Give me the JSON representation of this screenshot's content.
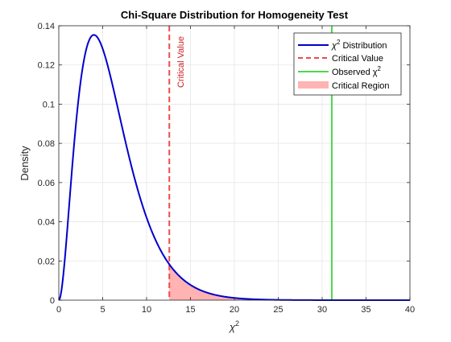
{
  "chart_data": {
    "type": "line",
    "title": "Chi-Square Distribution for Homogeneity Test",
    "xlabel": "χ",
    "xlabel_sup": "2",
    "ylabel": "Density",
    "xlim": [
      0,
      40
    ],
    "ylim": [
      0,
      0.14
    ],
    "x_ticks": [
      0,
      5,
      10,
      15,
      20,
      25,
      30,
      35,
      40
    ],
    "y_ticks": [
      0,
      0.02,
      0.04,
      0.06,
      0.08,
      0.1,
      0.12,
      0.14
    ],
    "grid": true,
    "legend_position": "top-right",
    "chi_square": {
      "name": "χ² Distribution",
      "degrees_of_freedom": 6,
      "color": "#0000cc"
    },
    "critical_value": {
      "value": 12.59,
      "name": "Critical Value",
      "label": "Critical Value",
      "color": "#f04a4a"
    },
    "observed": {
      "value": 31.1,
      "name": "Observed χ²",
      "color": "#4cd94c"
    },
    "critical_region": {
      "name": "Critical Region",
      "from": 12.59,
      "to": 40,
      "color": "#ffb3b3"
    },
    "legend": [
      {
        "label": "χ",
        "sup": "2",
        "suffix": " Distribution",
        "kind": "line",
        "color": "#0000cc"
      },
      {
        "label": "Critical Value",
        "kind": "dashed",
        "color": "#f04a4a"
      },
      {
        "label": "Observed χ",
        "sup": "2",
        "kind": "line",
        "color": "#4cd94c"
      },
      {
        "label": "Critical Region",
        "kind": "patch",
        "color": "#ffb3b3"
      }
    ]
  }
}
